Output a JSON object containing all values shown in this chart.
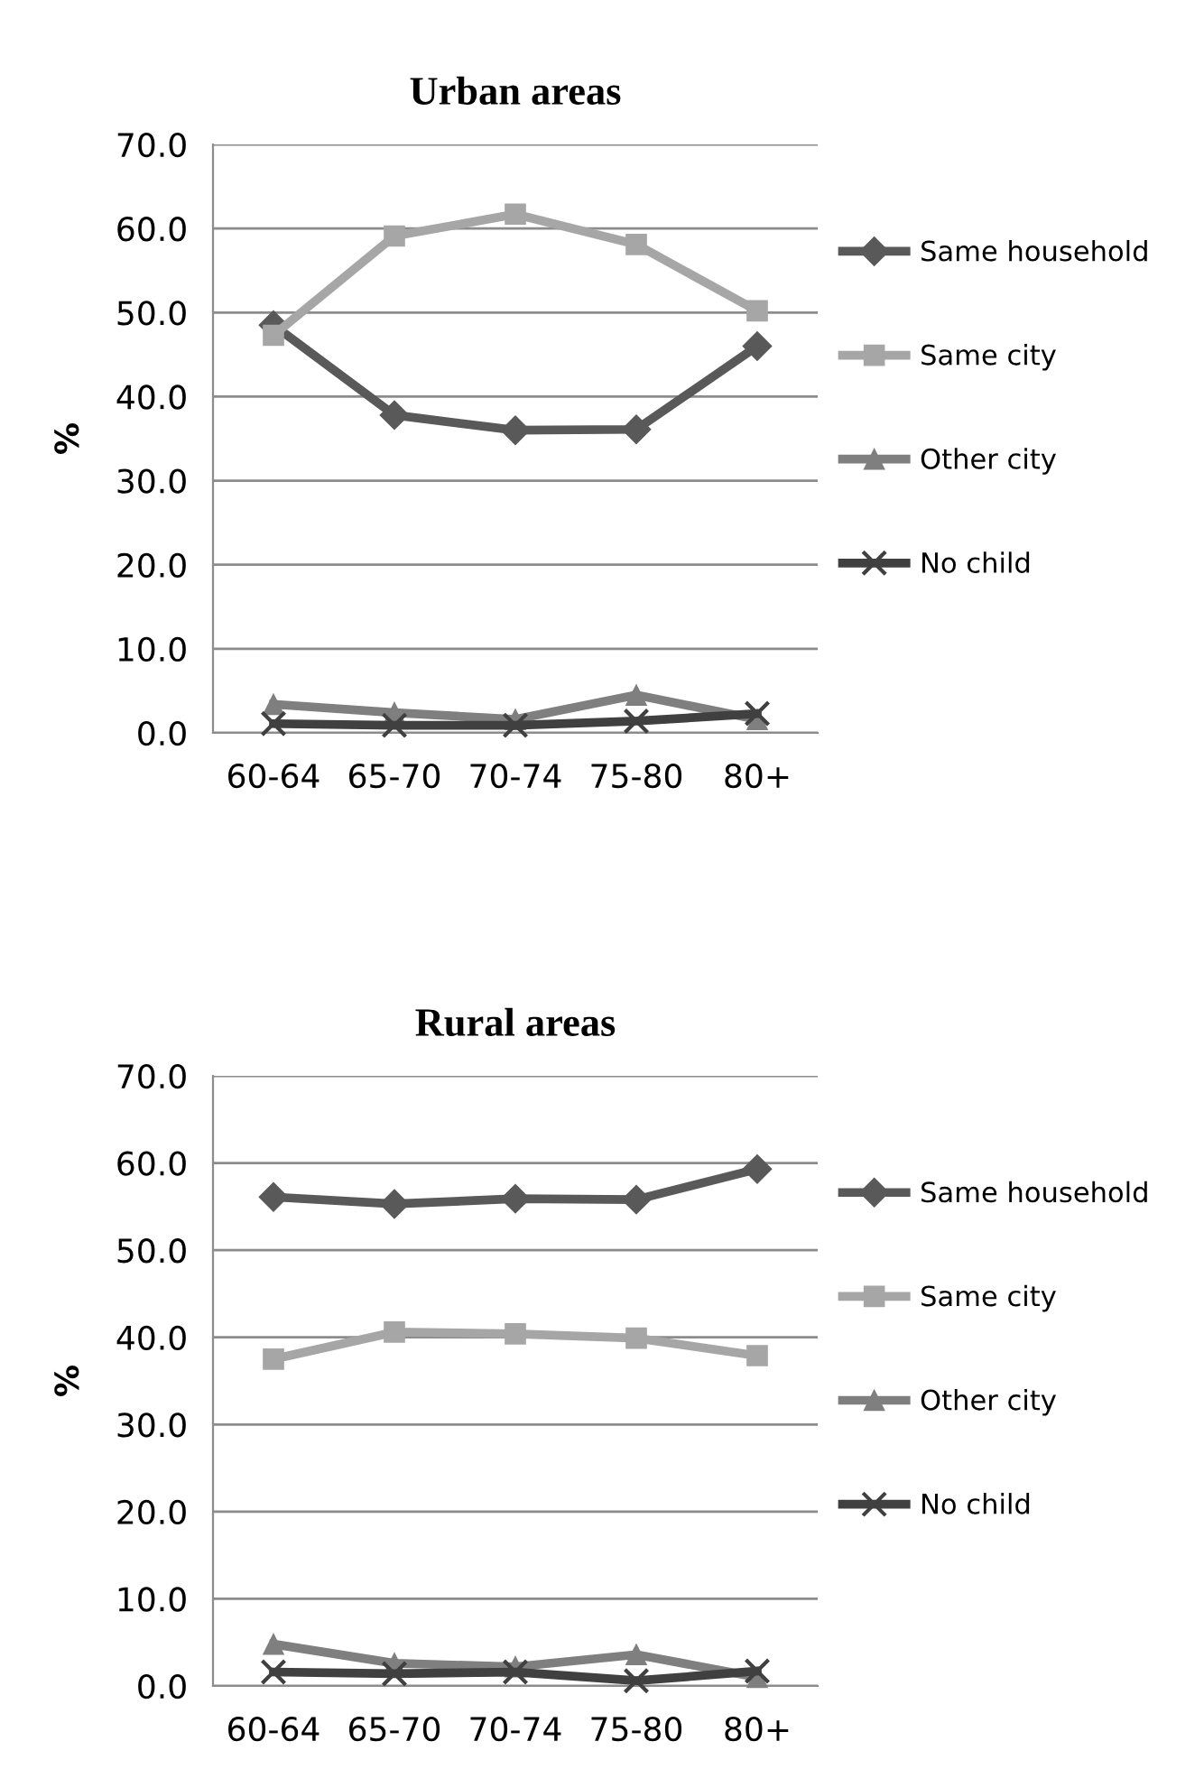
{
  "chart_data": [
    {
      "type": "line",
      "title": "Urban areas",
      "ylabel": "%",
      "categories": [
        "60-64",
        "65-70",
        "70-74",
        "75-80",
        "80+"
      ],
      "series": [
        {
          "name": "Same household",
          "color": "#595959",
          "marker": "diamond",
          "values": [
            48.5,
            37.8,
            36.0,
            36.1,
            46.0
          ]
        },
        {
          "name": "Same city",
          "color": "#a6a6a6",
          "marker": "square",
          "values": [
            47.3,
            59.1,
            61.7,
            58.1,
            50.2
          ]
        },
        {
          "name": "Other city",
          "color": "#7f7f7f",
          "marker": "triangle",
          "values": [
            3.4,
            2.4,
            1.6,
            4.5,
            1.6
          ]
        },
        {
          "name": "No child",
          "color": "#404040",
          "marker": "cross",
          "values": [
            1.1,
            0.9,
            0.9,
            1.4,
            2.3
          ]
        }
      ],
      "ylim": [
        0,
        70
      ],
      "yticks": [
        {
          "value": 0,
          "label": "0.0"
        },
        {
          "value": 10,
          "label": "10.0"
        },
        {
          "value": 20,
          "label": "20.0"
        },
        {
          "value": 30,
          "label": "30.0"
        },
        {
          "value": 40,
          "label": "40.0"
        },
        {
          "value": 50,
          "label": "50.0"
        },
        {
          "value": 60,
          "label": "60.0"
        },
        {
          "value": 70,
          "label": "70.0"
        }
      ],
      "grid": "y",
      "legend": "right"
    },
    {
      "type": "line",
      "title": "Rural areas",
      "ylabel": "%",
      "categories": [
        "60-64",
        "65-70",
        "70-74",
        "75-80",
        "80+"
      ],
      "series": [
        {
          "name": "Same household",
          "color": "#595959",
          "marker": "diamond",
          "values": [
            56.1,
            55.3,
            55.9,
            55.8,
            59.3
          ]
        },
        {
          "name": "Same city",
          "color": "#a6a6a6",
          "marker": "square",
          "values": [
            37.5,
            40.6,
            40.4,
            39.9,
            37.9
          ]
        },
        {
          "name": "Other city",
          "color": "#7f7f7f",
          "marker": "triangle",
          "values": [
            4.8,
            2.6,
            2.2,
            3.6,
            1.0
          ]
        },
        {
          "name": "No child",
          "color": "#404040",
          "marker": "cross",
          "values": [
            1.6,
            1.4,
            1.6,
            0.6,
            1.7
          ]
        }
      ],
      "ylim": [
        0,
        70
      ],
      "yticks": [
        {
          "value": 0,
          "label": "0.0"
        },
        {
          "value": 10,
          "label": "10.0"
        },
        {
          "value": 20,
          "label": "20.0"
        },
        {
          "value": 30,
          "label": "30.0"
        },
        {
          "value": 40,
          "label": "40.0"
        },
        {
          "value": 50,
          "label": "50.0"
        },
        {
          "value": 60,
          "label": "60.0"
        },
        {
          "value": 70,
          "label": "70.0"
        }
      ],
      "grid": "y",
      "legend": "right"
    }
  ]
}
